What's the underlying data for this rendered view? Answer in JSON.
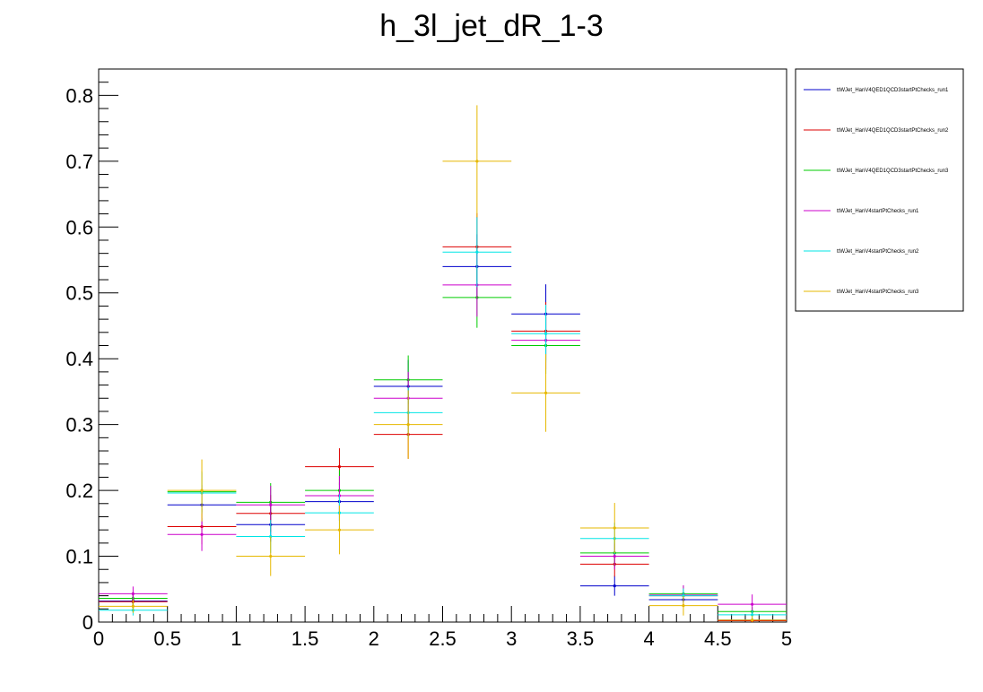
{
  "chart_data": {
    "type": "scatter",
    "title": "h_3l_jet_dR_1-3",
    "xlabel": "",
    "ylabel": "",
    "xlim": [
      0,
      5
    ],
    "ylim": [
      0,
      0.84
    ],
    "x_ticks": [
      0,
      0.5,
      1,
      1.5,
      2,
      2.5,
      3,
      3.5,
      4,
      4.5,
      5
    ],
    "x_tick_labels": [
      "0",
      "0.5",
      "1",
      "1.5",
      "2",
      "2.5",
      "3",
      "3.5",
      "4",
      "4.5",
      "5"
    ],
    "y_ticks": [
      0,
      0.1,
      0.2,
      0.3,
      0.4,
      0.5,
      0.6,
      0.7,
      0.8
    ],
    "y_tick_labels": [
      "0",
      "0.1",
      "0.2",
      "0.3",
      "0.4",
      "0.5",
      "0.6",
      "0.7",
      "0.8"
    ],
    "bin_edges": [
      0,
      0.5,
      1,
      1.5,
      2,
      2.5,
      3,
      3.5,
      4,
      4.5,
      5
    ],
    "grid": false,
    "legend_position": "right",
    "series": [
      {
        "name": "ttWJet_HanV4QED1QCD3startPtChecks_run1",
        "color": "#0000cc",
        "values": [
          0.032,
          0.178,
          0.148,
          0.183,
          0.358,
          0.54,
          0.468,
          0.055,
          0.034,
          0.003
        ],
        "errors": [
          0.01,
          0.03,
          0.026,
          0.029,
          0.04,
          0.049,
          0.045,
          0.015,
          0.011,
          0.003
        ]
      },
      {
        "name": "ttWJet_HanV4QED1QCD3startPtChecks_run2",
        "color": "#dd0000",
        "values": [
          0.031,
          0.145,
          0.165,
          0.236,
          0.285,
          0.57,
          0.442,
          0.088,
          0.04,
          0.002
        ],
        "errors": [
          0.01,
          0.027,
          0.028,
          0.028,
          0.037,
          0.051,
          0.044,
          0.019,
          0.011,
          0.003
        ]
      },
      {
        "name": "ttWJet_HanV4QED1QCD3startPtChecks_run3",
        "color": "#00cc00",
        "values": [
          0.036,
          0.198,
          0.182,
          0.2,
          0.368,
          0.493,
          0.42,
          0.105,
          0.043,
          0.016
        ],
        "errors": [
          0.01,
          0.031,
          0.029,
          0.031,
          0.037,
          0.046,
          0.043,
          0.021,
          0.012,
          0.007
        ]
      },
      {
        "name": "ttWJet_HanV4startPtChecks_run1",
        "color": "#cc00cc",
        "values": [
          0.043,
          0.133,
          0.178,
          0.192,
          0.34,
          0.512,
          0.428,
          0.1,
          0.041,
          0.027
        ],
        "errors": [
          0.011,
          0.025,
          0.029,
          0.03,
          0.04,
          0.048,
          0.044,
          0.02,
          0.015,
          0.015
        ]
      },
      {
        "name": "ttWJet_HanV4startPtChecks_run2",
        "color": "#00e5e5",
        "values": [
          0.018,
          0.196,
          0.13,
          0.166,
          0.318,
          0.562,
          0.438,
          0.127,
          0.04,
          0.011
        ],
        "errors": [
          0.008,
          0.031,
          0.025,
          0.028,
          0.038,
          0.053,
          0.044,
          0.024,
          0.011,
          0.007
        ]
      },
      {
        "name": "ttWJet_HanV4startPtChecks_run3",
        "color": "#e6b800",
        "values": [
          0.024,
          0.2,
          0.1,
          0.14,
          0.3,
          0.7,
          0.348,
          0.143,
          0.025,
          0.003
        ],
        "errors": [
          0.01,
          0.047,
          0.03,
          0.037,
          0.052,
          0.085,
          0.059,
          0.038,
          0.015,
          0.007
        ]
      }
    ]
  }
}
